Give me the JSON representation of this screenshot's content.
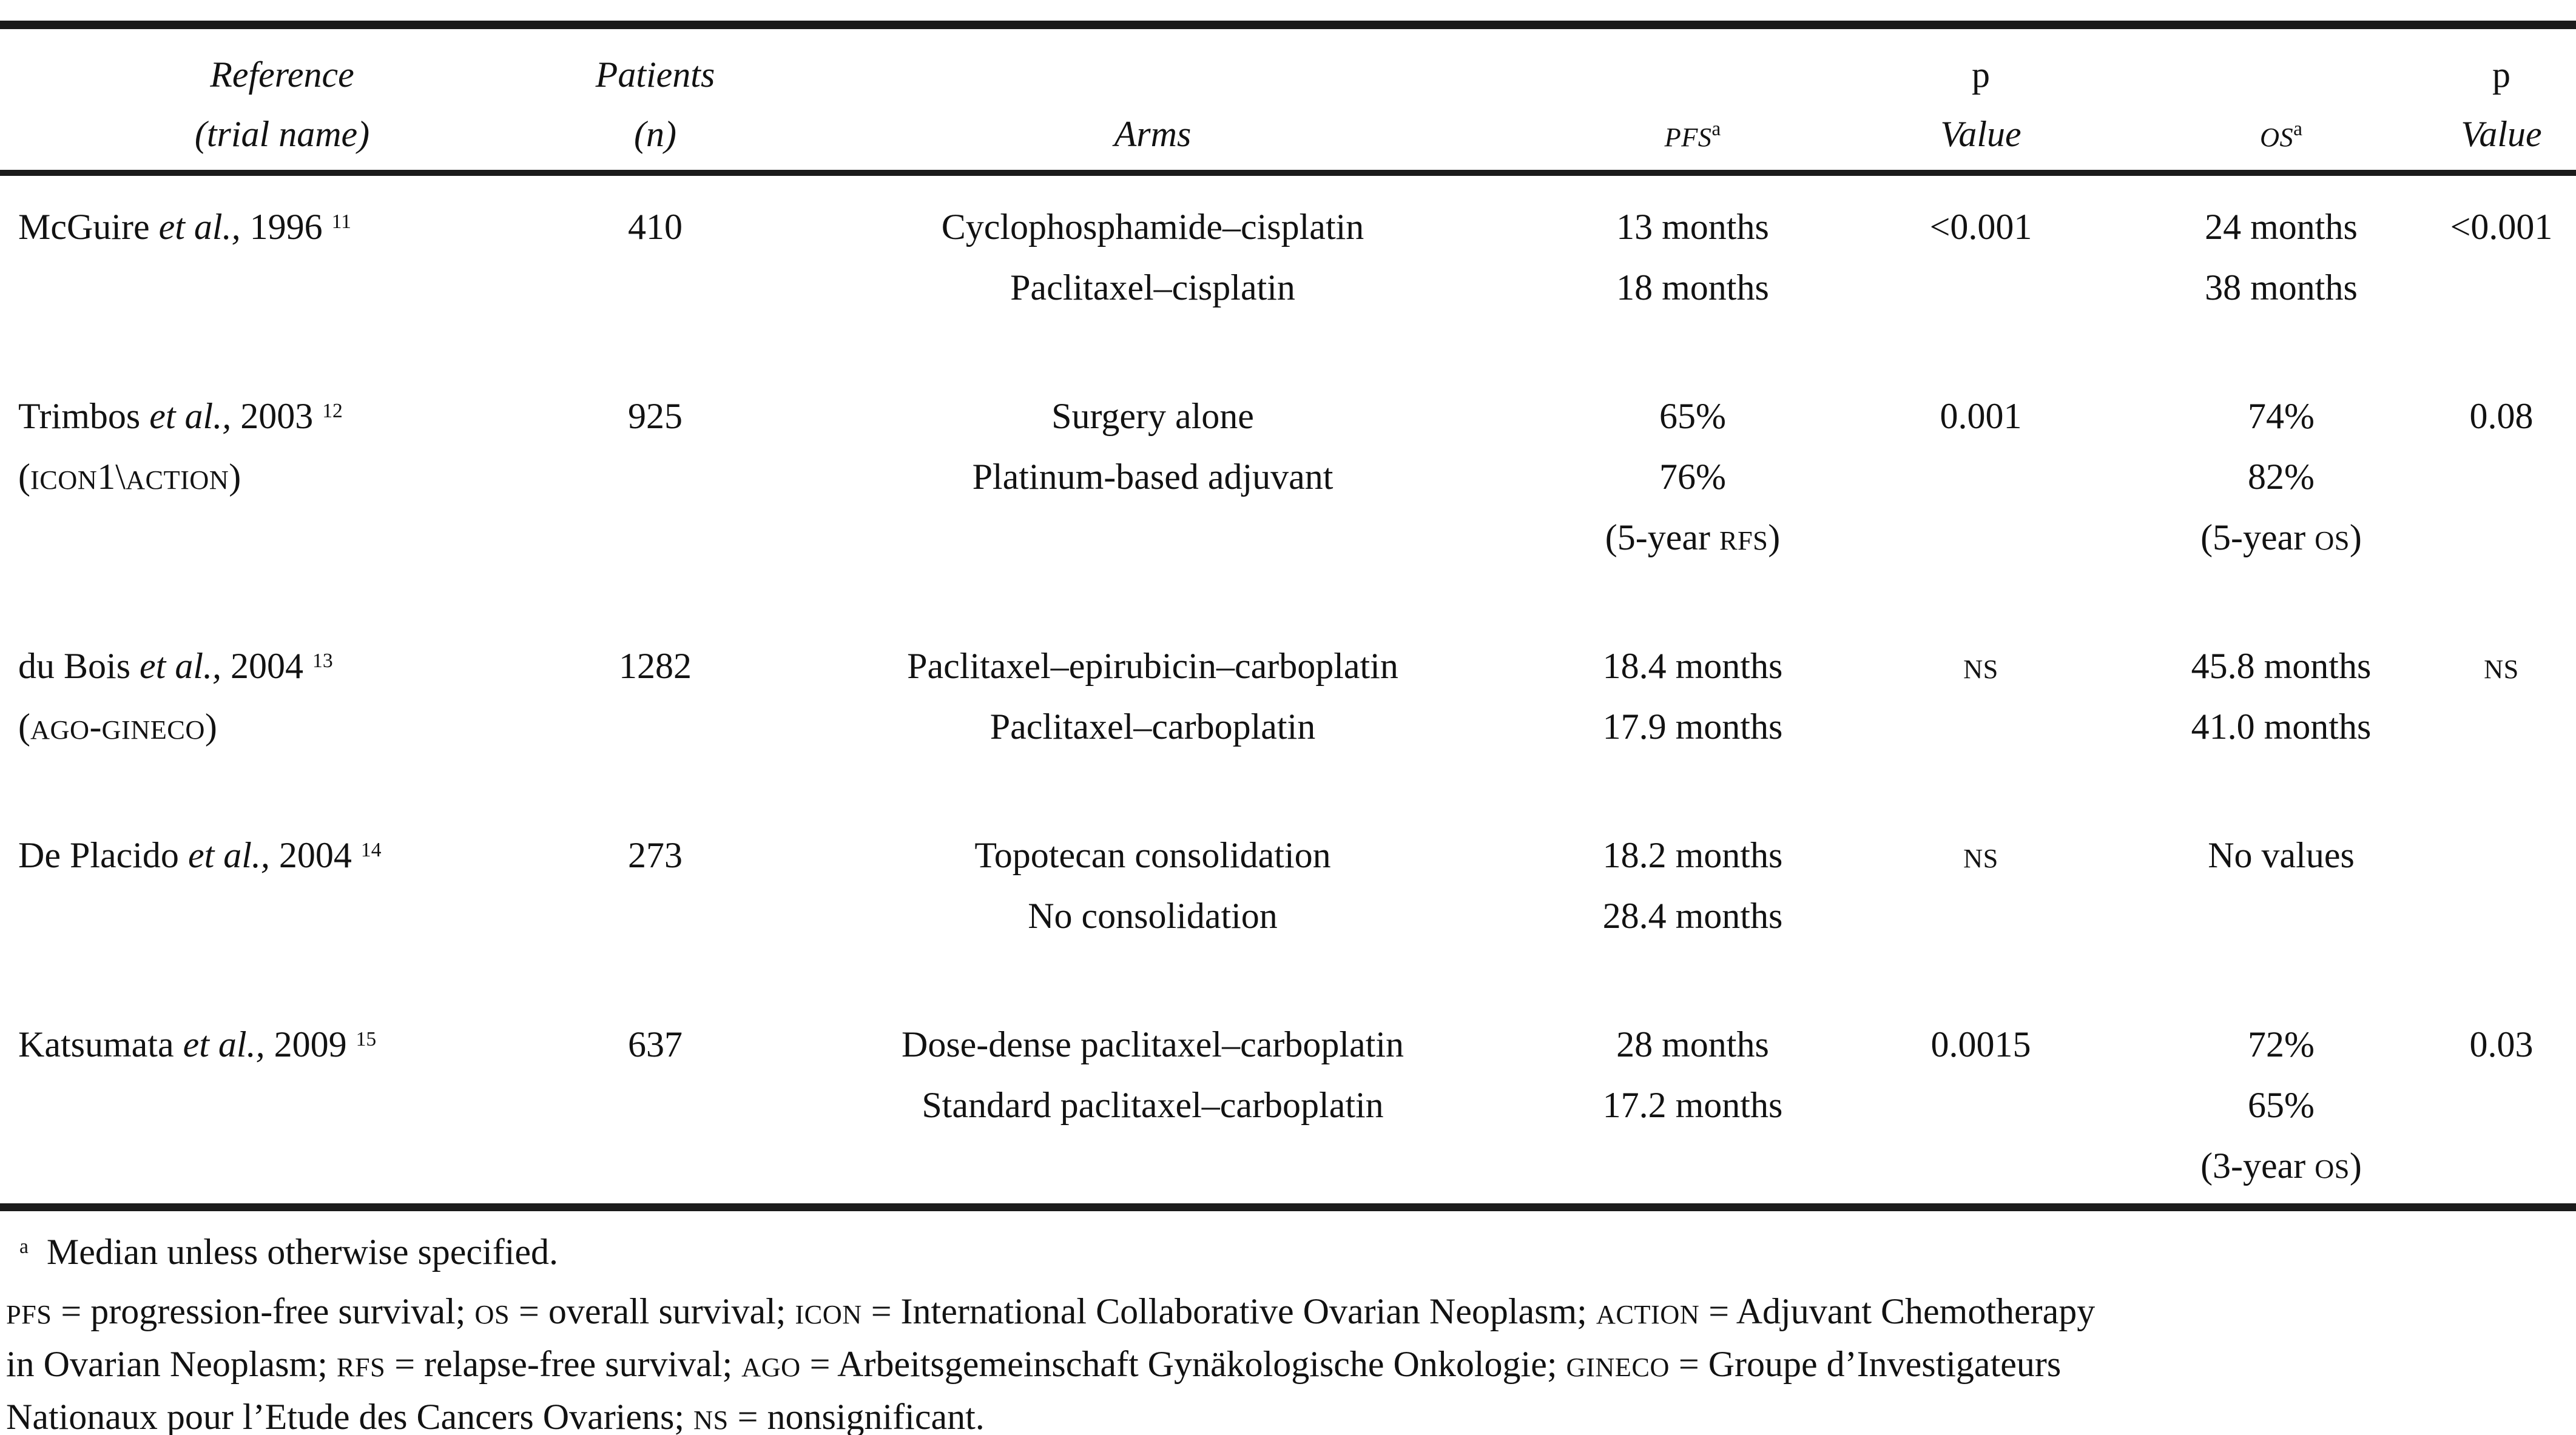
{
  "document": {
    "table": {
      "columns": [
        {
          "id": "reference",
          "header_lines": [
            "*Reference*",
            "*(trial name)*"
          ]
        },
        {
          "id": "patients",
          "header_lines": [
            "*Patients*",
            "*(n)*"
          ]
        },
        {
          "id": "arms",
          "header_lines": [
            "*Arms*"
          ]
        },
        {
          "id": "pfs",
          "header_lines": [
            "*[[PFS]]*^{a}"
          ]
        },
        {
          "id": "p-value-pfs",
          "header_lines": [
            "p",
            "*Value*"
          ]
        },
        {
          "id": "os",
          "header_lines": [
            "*[[OS]]*^{a}"
          ]
        },
        {
          "id": "p-value-os",
          "header_lines": [
            "p",
            "*Value*"
          ]
        }
      ],
      "rows": [
        {
          "cells": [
            [
              "McGuire *et al.,* 1996 ^{11}"
            ],
            [
              "410"
            ],
            [
              "Cyclophosphamide–cisplatin",
              "Paclitaxel–cisplatin"
            ],
            [
              "13 months",
              "18 months"
            ],
            [
              "<0.001"
            ],
            [
              "24 months",
              "38 months"
            ],
            [
              "<0.001"
            ]
          ]
        },
        {
          "cells": [
            [
              "Trimbos *et al.,* 2003 ^{12}",
              "([[ICON]]1\\[[ACTION]])"
            ],
            [
              "925"
            ],
            [
              "Surgery alone",
              "Platinum-based adjuvant"
            ],
            [
              "65%",
              "76%",
              "(5-year [[RFS]])"
            ],
            [
              "0.001"
            ],
            [
              "74%",
              "82%",
              "(5-year [[OS]])"
            ],
            [
              "0.08"
            ]
          ]
        },
        {
          "cells": [
            [
              "du Bois *et al.,* 2004 ^{13}",
              "([[AGO]]-[[GINECO]])"
            ],
            [
              "1282"
            ],
            [
              "Paclitaxel–epirubicin–carboplatin",
              "Paclitaxel–carboplatin"
            ],
            [
              "18.4 months",
              "17.9 months"
            ],
            [
              "[[NS]]"
            ],
            [
              "45.8 months",
              "41.0 months"
            ],
            [
              "[[NS]]"
            ]
          ]
        },
        {
          "cells": [
            [
              "De Placido *et al.,* 2004 ^{14}"
            ],
            [
              "273"
            ],
            [
              "Topotecan consolidation",
              "No consolidation"
            ],
            [
              "18.2 months",
              "28.4 months"
            ],
            [
              "[[NS]]"
            ],
            [
              "No values"
            ],
            []
          ]
        },
        {
          "cells": [
            [
              "Katsumata *et al.,* 2009 ^{15}"
            ],
            [
              "637"
            ],
            [
              "Dose-dense paclitaxel–carboplatin",
              "Standard paclitaxel–carboplatin"
            ],
            [
              "28 months",
              "17.2 months"
            ],
            [
              "0.0015"
            ],
            [
              "72%",
              "65%",
              "(3-year [[OS]])"
            ],
            [
              "0.03"
            ]
          ]
        }
      ]
    },
    "footnotes": {
      "median_note": "^{a}  Median unless otherwise specified.",
      "abbreviation_lines": [
        "[[PFS]] = progression-free survival; [[OS]] = overall survival; [[ICON]] = International Collaborative Ovarian Neoplasm; [[ACTION]] = Adjuvant Chemotherapy",
        "in Ovarian Neoplasm; [[RFS]] = relapse-free survival; [[AGO]] = Arbeitsgemeinschaft Gynäkologische Onkologie; [[GINECO]] = Groupe d’Investigateurs",
        "Nationaux pour l’Etude des Cancers Ovariens; [[NS]] = nonsignificant."
      ]
    }
  }
}
